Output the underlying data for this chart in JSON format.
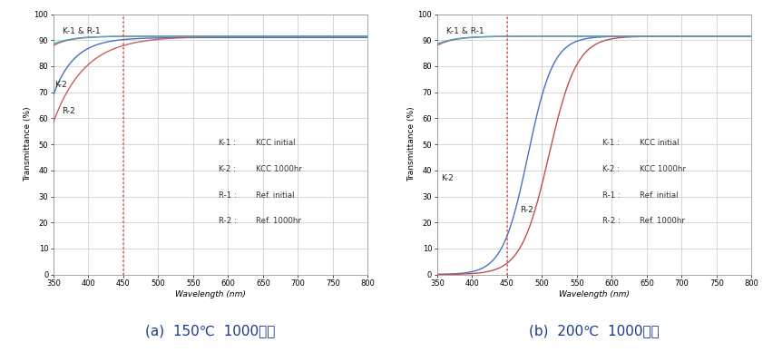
{
  "x_range": [
    350,
    800
  ],
  "y_range": [
    0,
    100
  ],
  "x_ticks": [
    350,
    400,
    450,
    500,
    550,
    600,
    650,
    700,
    750,
    800
  ],
  "y_ticks": [
    0,
    10,
    20,
    30,
    40,
    50,
    60,
    70,
    80,
    90,
    100
  ],
  "vline_x": 450,
  "xlabel": "Wavelength (nm)",
  "ylabel": "Transmittance (%)",
  "caption_a": "(a)  150℃  1000시간",
  "caption_b": "(b)  200℃  1000시간",
  "legend_rows": [
    [
      "K-1 :",
      "KCC initial"
    ],
    [
      "K-2 :",
      "KCC 1000hr"
    ],
    [
      "R-1 :",
      "Ref. initial"
    ],
    [
      "R-2 :",
      "Ref. 1000hr"
    ]
  ],
  "colors": {
    "K1": "#4bacc6",
    "K2": "#4472c4",
    "R1": "#c0504d",
    "R2": "#c0504d"
  },
  "background": "#ffffff",
  "plot_bg": "#ffffff",
  "grid_color": "#d0d0d0",
  "vline_color": "#e05050"
}
